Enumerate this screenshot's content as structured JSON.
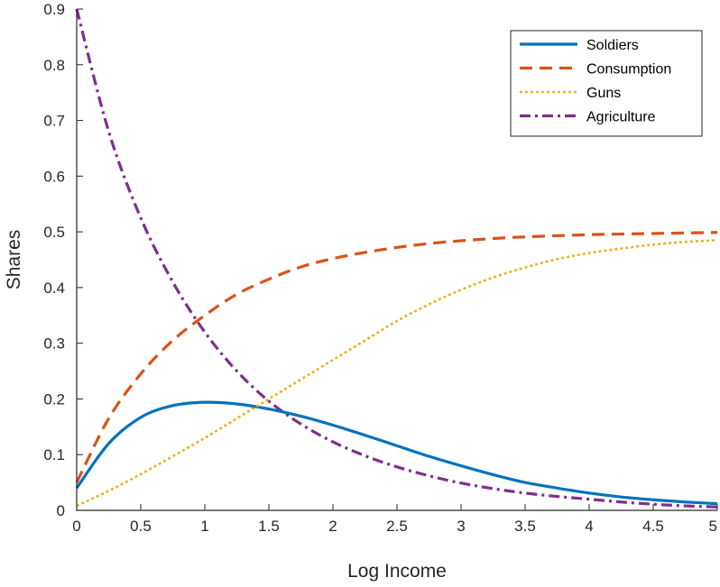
{
  "chart_data": {
    "type": "line",
    "title": "",
    "xlabel": "Log Income",
    "ylabel": "Shares",
    "xlim": [
      0,
      5
    ],
    "ylim": [
      0,
      0.9
    ],
    "xticks": [
      0,
      0.5,
      1,
      1.5,
      2,
      2.5,
      3,
      3.5,
      4,
      4.5,
      5
    ],
    "xtick_labels": [
      "0",
      "0.5",
      "1",
      "1.5",
      "2",
      "2.5",
      "3",
      "3.5",
      "4",
      "4.5",
      "5"
    ],
    "yticks": [
      0,
      0.1,
      0.2,
      0.3,
      0.4,
      0.5,
      0.6,
      0.7,
      0.8,
      0.9
    ],
    "ytick_labels": [
      "0",
      "0.1",
      "0.2",
      "0.3",
      "0.4",
      "0.5",
      "0.6",
      "0.7",
      "0.8",
      "0.9"
    ],
    "grid": false,
    "legend_position": "top-right",
    "x": [
      0,
      0.25,
      0.5,
      0.75,
      1,
      1.25,
      1.5,
      1.75,
      2,
      2.25,
      2.5,
      2.75,
      3,
      3.25,
      3.5,
      3.75,
      4,
      4.25,
      4.5,
      4.75,
      5
    ],
    "series": [
      {
        "name": "Soldiers",
        "color": "#0072BD",
        "dash": "solid",
        "values": [
          0.04,
          0.12,
          0.167,
          0.188,
          0.194,
          0.191,
          0.182,
          0.169,
          0.153,
          0.135,
          0.116,
          0.097,
          0.08,
          0.064,
          0.05,
          0.04,
          0.031,
          0.024,
          0.019,
          0.015,
          0.012
        ]
      },
      {
        "name": "Consumption",
        "color": "#D95319",
        "dash": "dashed",
        "values": [
          0.05,
          0.165,
          0.245,
          0.305,
          0.35,
          0.388,
          0.415,
          0.437,
          0.452,
          0.463,
          0.472,
          0.479,
          0.484,
          0.488,
          0.491,
          0.493,
          0.495,
          0.496,
          0.497,
          0.498,
          0.499
        ]
      },
      {
        "name": "Guns",
        "color": "#EDB120",
        "dash": "dotted",
        "values": [
          0.008,
          0.035,
          0.065,
          0.097,
          0.13,
          0.165,
          0.2,
          0.235,
          0.27,
          0.305,
          0.34,
          0.37,
          0.396,
          0.418,
          0.436,
          0.451,
          0.462,
          0.47,
          0.477,
          0.482,
          0.485
        ]
      },
      {
        "name": "Agriculture",
        "color": "#7E2F8E",
        "dash": "dashdot",
        "values": [
          0.9,
          0.68,
          0.525,
          0.41,
          0.32,
          0.25,
          0.196,
          0.155,
          0.123,
          0.098,
          0.078,
          0.062,
          0.049,
          0.039,
          0.031,
          0.025,
          0.02,
          0.015,
          0.011,
          0.008,
          0.006
        ]
      }
    ]
  }
}
